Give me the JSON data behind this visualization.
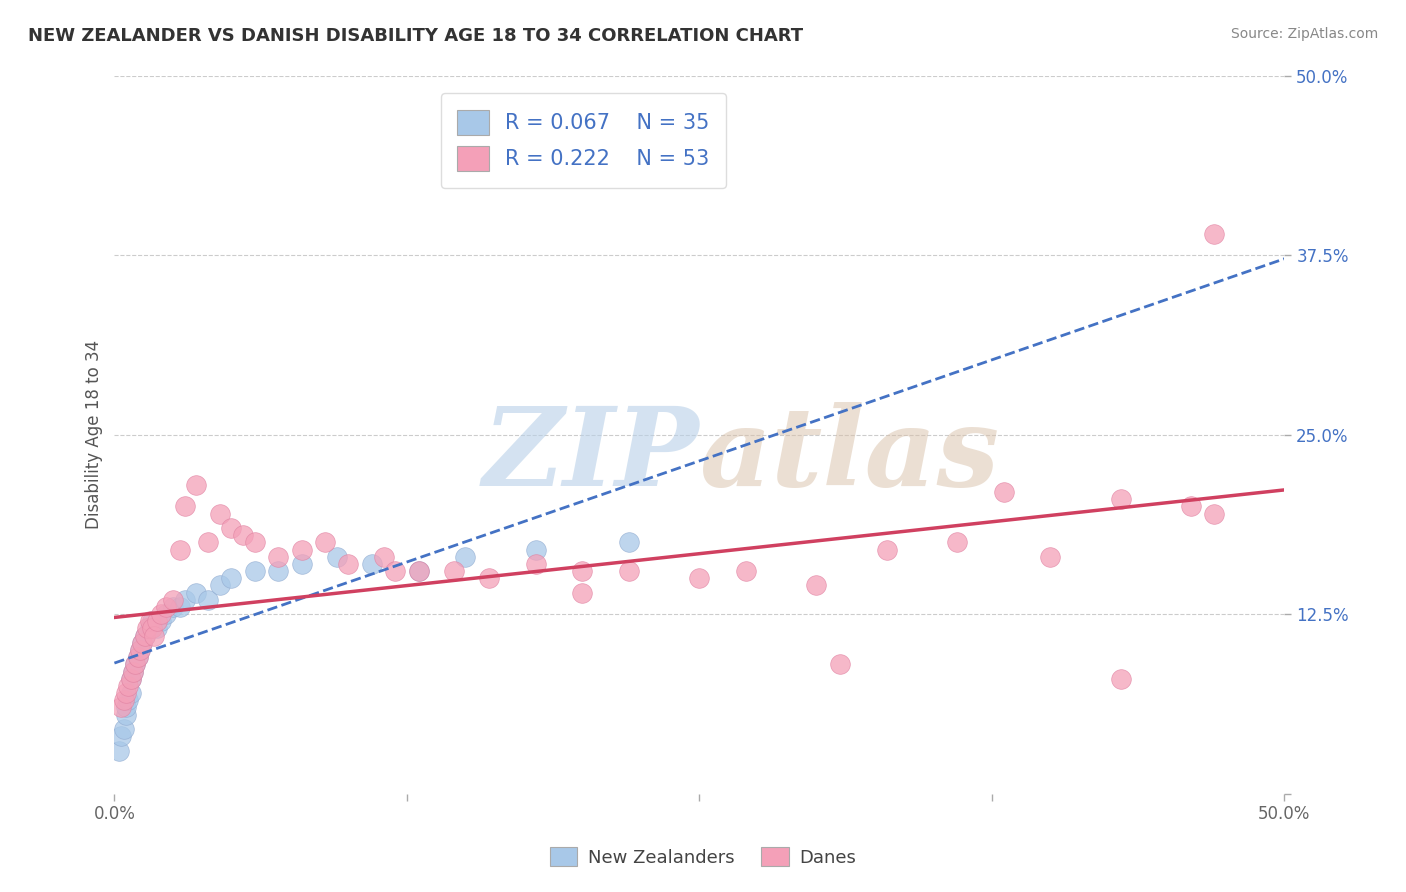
{
  "title": "NEW ZEALANDER VS DANISH DISABILITY AGE 18 TO 34 CORRELATION CHART",
  "source": "Source: ZipAtlas.com",
  "ylabel": "Disability Age 18 to 34",
  "xlim": [
    0.0,
    0.5
  ],
  "ylim": [
    0.0,
    0.5
  ],
  "nz_R": 0.067,
  "nz_N": 35,
  "dane_R": 0.222,
  "dane_N": 53,
  "nz_color": "#a8c8e8",
  "dane_color": "#f4a0b8",
  "nz_line_color": "#4472c4",
  "dane_line_color": "#d04060",
  "legend_text_color": "#4472c4",
  "background_color": "#ffffff",
  "nz_x": [
    0.002,
    0.003,
    0.004,
    0.005,
    0.005,
    0.006,
    0.007,
    0.007,
    0.008,
    0.009,
    0.01,
    0.011,
    0.012,
    0.013,
    0.015,
    0.016,
    0.018,
    0.02,
    0.022,
    0.025,
    0.028,
    0.03,
    0.035,
    0.04,
    0.045,
    0.05,
    0.06,
    0.07,
    0.08,
    0.095,
    0.11,
    0.13,
    0.15,
    0.18,
    0.22
  ],
  "nz_y": [
    0.03,
    0.04,
    0.045,
    0.055,
    0.06,
    0.065,
    0.07,
    0.08,
    0.085,
    0.09,
    0.095,
    0.1,
    0.105,
    0.11,
    0.115,
    0.12,
    0.115,
    0.12,
    0.125,
    0.13,
    0.13,
    0.135,
    0.14,
    0.135,
    0.145,
    0.15,
    0.155,
    0.155,
    0.16,
    0.165,
    0.16,
    0.155,
    0.165,
    0.17,
    0.175
  ],
  "dane_x": [
    0.003,
    0.004,
    0.005,
    0.006,
    0.007,
    0.008,
    0.009,
    0.01,
    0.011,
    0.012,
    0.013,
    0.014,
    0.015,
    0.016,
    0.017,
    0.018,
    0.02,
    0.022,
    0.025,
    0.028,
    0.03,
    0.035,
    0.04,
    0.045,
    0.05,
    0.055,
    0.06,
    0.07,
    0.08,
    0.09,
    0.1,
    0.115,
    0.13,
    0.145,
    0.16,
    0.18,
    0.2,
    0.22,
    0.25,
    0.27,
    0.3,
    0.33,
    0.36,
    0.4,
    0.43,
    0.46,
    0.47,
    0.31,
    0.38,
    0.43,
    0.12,
    0.2,
    0.47
  ],
  "dane_y": [
    0.06,
    0.065,
    0.07,
    0.075,
    0.08,
    0.085,
    0.09,
    0.095,
    0.1,
    0.105,
    0.11,
    0.115,
    0.12,
    0.115,
    0.11,
    0.12,
    0.125,
    0.13,
    0.135,
    0.17,
    0.2,
    0.215,
    0.175,
    0.195,
    0.185,
    0.18,
    0.175,
    0.165,
    0.17,
    0.175,
    0.16,
    0.165,
    0.155,
    0.155,
    0.15,
    0.16,
    0.155,
    0.155,
    0.15,
    0.155,
    0.145,
    0.17,
    0.175,
    0.165,
    0.205,
    0.2,
    0.195,
    0.09,
    0.21,
    0.08,
    0.155,
    0.14,
    0.39
  ]
}
